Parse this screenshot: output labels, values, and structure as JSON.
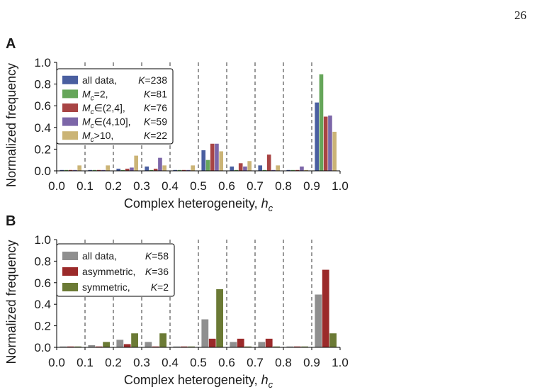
{
  "page_number": "26",
  "chart_data": [
    {
      "panel": "A",
      "type": "bar",
      "xlabel": "Complex heterogeneity, h_c",
      "ylabel": "Normalized frequency",
      "xlim": [
        0.0,
        1.0
      ],
      "ylim": [
        0.0,
        1.0
      ],
      "xticks": [
        "0.0",
        "0.1",
        "0.2",
        "0.3",
        "0.4",
        "0.5",
        "0.6",
        "0.7",
        "0.8",
        "0.9",
        "1.0"
      ],
      "yticks": [
        "0.0",
        "0.2",
        "0.4",
        "0.6",
        "0.8",
        "1.0"
      ],
      "bin_separators": [
        0.1,
        0.2,
        0.3,
        0.4,
        0.5,
        0.6,
        0.7,
        0.8,
        0.9
      ],
      "bin_centers": [
        0.05,
        0.15,
        0.25,
        0.35,
        0.45,
        0.55,
        0.65,
        0.75,
        0.85,
        0.95
      ],
      "legend_position": "upper-left",
      "series": [
        {
          "name": "all data",
          "legend_main": "all data,",
          "legend_sub": "",
          "legend_rest": "",
          "legend_k": "K=238",
          "color": "#4a5fa0",
          "values": [
            0.0,
            0.0,
            0.02,
            0.04,
            0.0,
            0.19,
            0.04,
            0.05,
            0.0,
            0.63
          ]
        },
        {
          "name": "Mc=2",
          "legend_main": "M",
          "legend_sub": "c",
          "legend_rest": "=2,",
          "legend_k": "K=81",
          "color": "#66a65a",
          "values": [
            0.0,
            0.0,
            0.0,
            0.0,
            0.0,
            0.1,
            0.0,
            0.0,
            0.0,
            0.89
          ]
        },
        {
          "name": "Mc∈(2,4]",
          "legend_main": "M",
          "legend_sub": "c",
          "legend_rest": "∈(2,4],",
          "legend_k": "K=76",
          "color": "#a84444",
          "values": [
            0.0,
            0.0,
            0.02,
            0.02,
            0.0,
            0.25,
            0.07,
            0.15,
            0.0,
            0.5
          ]
        },
        {
          "name": "Mc∈(4,10]",
          "legend_main": "M",
          "legend_sub": "c",
          "legend_rest": "∈(4,10],",
          "legend_k": "K=59",
          "color": "#7c66a8",
          "values": [
            0.0,
            0.0,
            0.03,
            0.12,
            0.0,
            0.25,
            0.04,
            0.0,
            0.04,
            0.51
          ]
        },
        {
          "name": "Mc>10",
          "legend_main": "M",
          "legend_sub": "c",
          "legend_rest": ">10,",
          "legend_k": "K=22",
          "color": "#cbb476",
          "values": [
            0.05,
            0.05,
            0.14,
            0.05,
            0.05,
            0.18,
            0.09,
            0.05,
            0.0,
            0.36
          ]
        }
      ]
    },
    {
      "panel": "B",
      "type": "bar",
      "xlabel": "Complex heterogeneity, h_c",
      "ylabel": "Normalized frequency",
      "xlim": [
        0.0,
        1.0
      ],
      "ylim": [
        0.0,
        1.0
      ],
      "xticks": [
        "0.0",
        "0.1",
        "0.2",
        "0.3",
        "0.4",
        "0.5",
        "0.6",
        "0.7",
        "0.8",
        "0.9",
        "1.0"
      ],
      "yticks": [
        "0.0",
        "0.2",
        "0.4",
        "0.6",
        "0.8",
        "1.0"
      ],
      "bin_separators": [
        0.1,
        0.2,
        0.3,
        0.4,
        0.5,
        0.6,
        0.7,
        0.8,
        0.9
      ],
      "bin_centers": [
        0.05,
        0.15,
        0.25,
        0.35,
        0.45,
        0.55,
        0.65,
        0.75,
        0.85,
        0.95
      ],
      "legend_position": "upper-left",
      "series": [
        {
          "name": "all data",
          "legend_main": "all data,",
          "legend_sub": "",
          "legend_rest": "",
          "legend_k": "K=58",
          "color": "#8f8f8f",
          "values": [
            0.0,
            0.02,
            0.07,
            0.05,
            0.0,
            0.26,
            0.05,
            0.05,
            0.0,
            0.49
          ]
        },
        {
          "name": "asymmetric",
          "legend_main": "asymmetric,",
          "legend_sub": "",
          "legend_rest": "",
          "legend_k": "K=36",
          "color": "#9b2a2a",
          "values": [
            0.0,
            0.0,
            0.03,
            0.0,
            0.0,
            0.08,
            0.08,
            0.08,
            0.0,
            0.72
          ]
        },
        {
          "name": "symmetric",
          "legend_main": "symmetric,",
          "legend_sub": "",
          "legend_rest": "",
          "legend_k": "K=2",
          "color": "#6b7a35",
          "values": [
            0.0,
            0.05,
            0.13,
            0.13,
            0.0,
            0.54,
            0.0,
            0.0,
            0.0,
            0.13
          ]
        }
      ]
    }
  ]
}
